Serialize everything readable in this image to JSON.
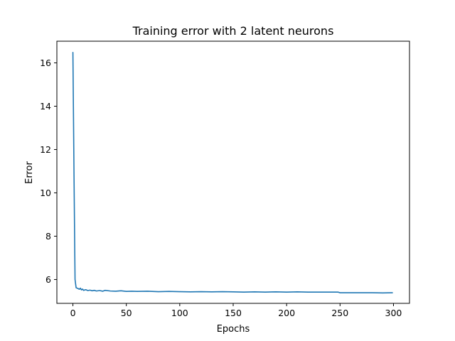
{
  "chart_data": {
    "type": "line",
    "title": "Training error with 2 latent neurons",
    "xlabel": "Epochs",
    "ylabel": "Error",
    "xlim": [
      -15,
      315
    ],
    "ylim": [
      4.9,
      17.0
    ],
    "xticks": [
      0,
      50,
      100,
      150,
      200,
      250,
      300
    ],
    "yticks": [
      6,
      8,
      10,
      12,
      14,
      16
    ],
    "grid": false,
    "legend": "none",
    "colors": {
      "series": "#1f77b4"
    },
    "series": [
      {
        "x": [
          0,
          1,
          2,
          3,
          4,
          5,
          6,
          7,
          8,
          9,
          10,
          12,
          14,
          16,
          18,
          20,
          22,
          25,
          28,
          30,
          35,
          40,
          45,
          50,
          55,
          60,
          70,
          80,
          90,
          100,
          110,
          120,
          130,
          140,
          150,
          160,
          170,
          180,
          190,
          200,
          210,
          220,
          230,
          240,
          248,
          250,
          260,
          270,
          280,
          290,
          299
        ],
        "y": [
          16.48,
          11.0,
          6.0,
          5.62,
          5.6,
          5.58,
          5.55,
          5.6,
          5.52,
          5.56,
          5.5,
          5.53,
          5.49,
          5.51,
          5.48,
          5.5,
          5.47,
          5.49,
          5.46,
          5.5,
          5.47,
          5.46,
          5.48,
          5.45,
          5.46,
          5.45,
          5.46,
          5.44,
          5.45,
          5.44,
          5.43,
          5.44,
          5.43,
          5.44,
          5.43,
          5.42,
          5.43,
          5.42,
          5.43,
          5.42,
          5.43,
          5.42,
          5.42,
          5.42,
          5.42,
          5.39,
          5.39,
          5.39,
          5.39,
          5.38,
          5.39
        ]
      }
    ]
  }
}
